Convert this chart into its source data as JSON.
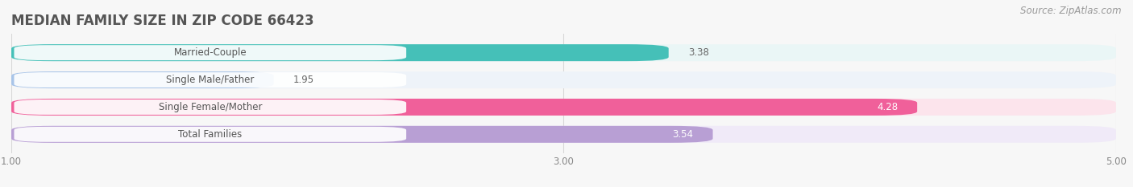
{
  "title": "MEDIAN FAMILY SIZE IN ZIP CODE 66423",
  "source": "Source: ZipAtlas.com",
  "categories": [
    "Married-Couple",
    "Single Male/Father",
    "Single Female/Mother",
    "Total Families"
  ],
  "values": [
    3.38,
    1.95,
    4.28,
    3.54
  ],
  "bar_colors": [
    "#45c0b8",
    "#a8c4e8",
    "#f0609a",
    "#b89fd4"
  ],
  "bar_bg_colors": [
    "#eaf6f6",
    "#eef3f9",
    "#fce4ec",
    "#f0eaf8"
  ],
  "xlim_data": [
    0.0,
    5.0
  ],
  "xlim_display": [
    1.0,
    5.0
  ],
  "xticks": [
    1.0,
    3.0,
    5.0
  ],
  "xtick_labels": [
    "1.00",
    "3.00",
    "5.00"
  ],
  "bar_height": 0.62,
  "label_fontsize": 8.5,
  "value_fontsize": 8.5,
  "title_fontsize": 12,
  "source_fontsize": 8.5,
  "background_color": "#f7f7f7",
  "bar_row_bg": "#f0f0f0",
  "grid_color": "#d8d8d8",
  "value_label_color_inside": "#ffffff",
  "value_label_color_outside": "#666666"
}
